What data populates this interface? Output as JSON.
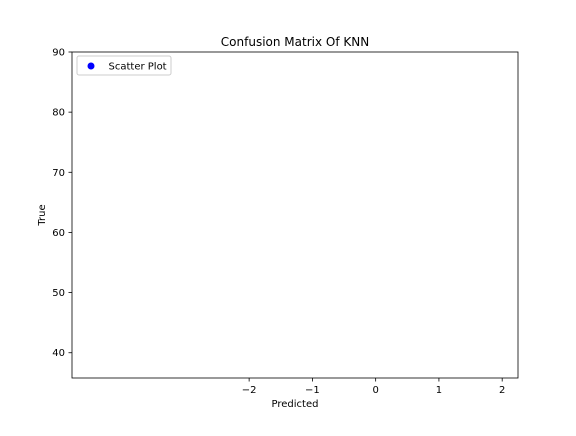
{
  "chart_data": {
    "type": "scatter",
    "title": "Confusion Matrix Of KNN",
    "xlabel": "Predicted",
    "ylabel": "True",
    "xlim": [
      -4.8,
      2.25
    ],
    "ylim": [
      35.8,
      90
    ],
    "xticks": [
      -2,
      -1,
      0,
      1,
      2
    ],
    "xtick_labels": [
      "−2",
      "−1",
      "0",
      "1",
      "2"
    ],
    "yticks": [
      40,
      50,
      60,
      70,
      80,
      90
    ],
    "ytick_labels": [
      "40",
      "50",
      "60",
      "70",
      "80",
      "90"
    ],
    "grid": false,
    "legend": {
      "location": "upper-left",
      "entries": [
        {
          "label": "Scatter Plot",
          "color": "#0000ff",
          "marker": "circle"
        }
      ]
    },
    "series": [
      {
        "name": "Scatter Plot",
        "color": "#0000ff",
        "points": []
      }
    ]
  }
}
